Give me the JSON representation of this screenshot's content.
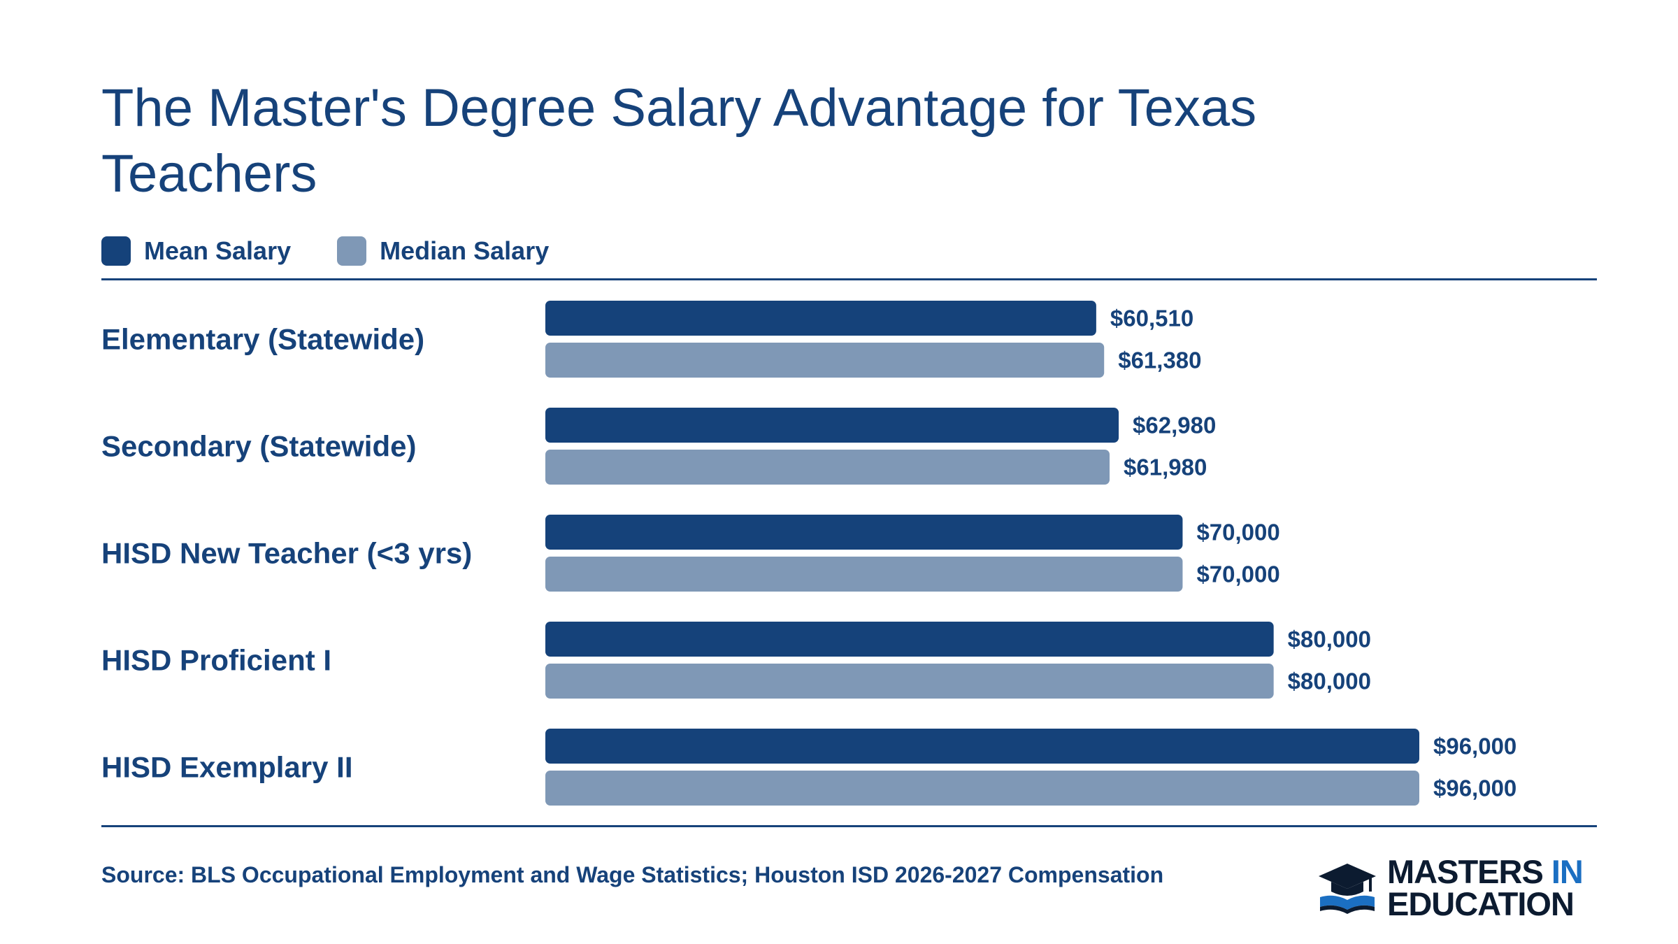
{
  "header": {
    "title": "The Master's Degree Salary Advantage for Texas Teachers"
  },
  "legend": {
    "items": [
      {
        "label": "Mean Salary",
        "color": "#15427a"
      },
      {
        "label": "Median Salary",
        "color": "#7f98b6"
      }
    ]
  },
  "chart_data": {
    "type": "bar",
    "orientation": "horizontal",
    "categories": [
      "Elementary (Statewide)",
      "Secondary (Statewide)",
      "HISD New Teacher (<3 yrs)",
      "HISD Proficient I",
      "HISD Exemplary II"
    ],
    "series": [
      {
        "name": "Mean Salary",
        "color": "#15427a",
        "values": [
          60510,
          62980,
          70000,
          80000,
          96000
        ],
        "labels": [
          "$60,510",
          "$62,980",
          "$70,000",
          "$80,000",
          "$96,000"
        ]
      },
      {
        "name": "Median Salary",
        "color": "#7f98b6",
        "values": [
          61380,
          61980,
          70000,
          80000,
          96000
        ],
        "labels": [
          "$61,380",
          "$61,980",
          "$70,000",
          "$80,000",
          "$96,000"
        ]
      }
    ],
    "xlim": [
      0,
      96000
    ],
    "grid": false,
    "legend_position": "top-left"
  },
  "footer": {
    "source": "Source: BLS Occupational Employment and Wage Statistics; Houston ISD 2026-2027 Compensation",
    "logo": {
      "word1": "MASTERS",
      "word2": "IN",
      "word3": "EDUCATION",
      "icon": "graduation-cap-book-icon",
      "accent_color": "#1b6fc2"
    }
  }
}
